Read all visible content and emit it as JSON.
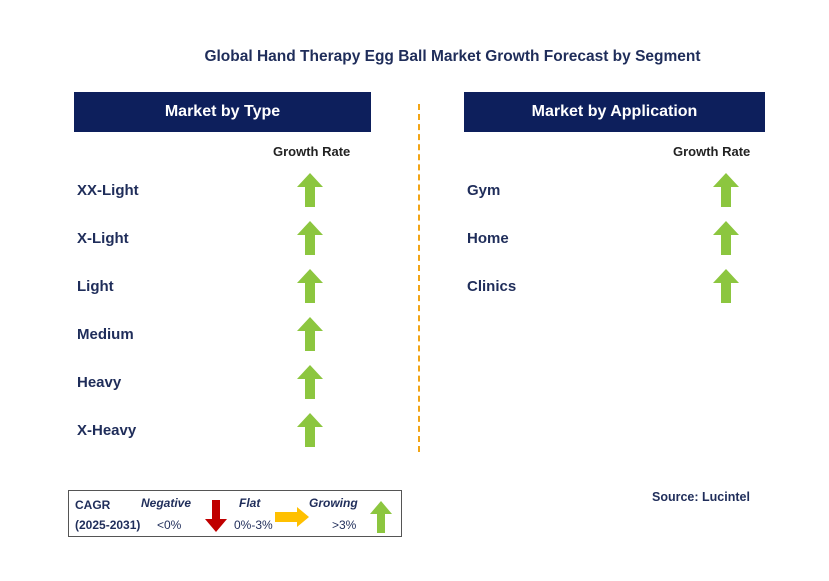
{
  "title": "Global Hand Therapy Egg Ball Market Growth Forecast by Segment",
  "left_panel": {
    "header": "Market by Type",
    "growth_label": "Growth Rate",
    "items": [
      {
        "label": "XX-Light",
        "trend": "growing"
      },
      {
        "label": "X-Light",
        "trend": "growing"
      },
      {
        "label": "Light",
        "trend": "growing"
      },
      {
        "label": "Medium",
        "trend": "growing"
      },
      {
        "label": "Heavy",
        "trend": "growing"
      },
      {
        "label": "X-Heavy",
        "trend": "growing"
      }
    ]
  },
  "right_panel": {
    "header": "Market by Application",
    "growth_label": "Growth Rate",
    "items": [
      {
        "label": "Gym",
        "trend": "growing"
      },
      {
        "label": "Home",
        "trend": "growing"
      },
      {
        "label": "Clinics",
        "trend": "growing"
      }
    ]
  },
  "legend": {
    "cagr": "CAGR",
    "period": "(2025-2031)",
    "negative_label": "Negative",
    "negative_range": "<0%",
    "flat_label": "Flat",
    "flat_range": "0%-3%",
    "growing_label": "Growing",
    "growing_range": ">3%"
  },
  "source": "Source: Lucintel",
  "colors": {
    "header_bg": "#0d1f5c",
    "up_arrow": "#8cc63f",
    "down_arrow": "#c00000",
    "flat_arrow": "#ffc000",
    "divider": "#f2a516"
  }
}
